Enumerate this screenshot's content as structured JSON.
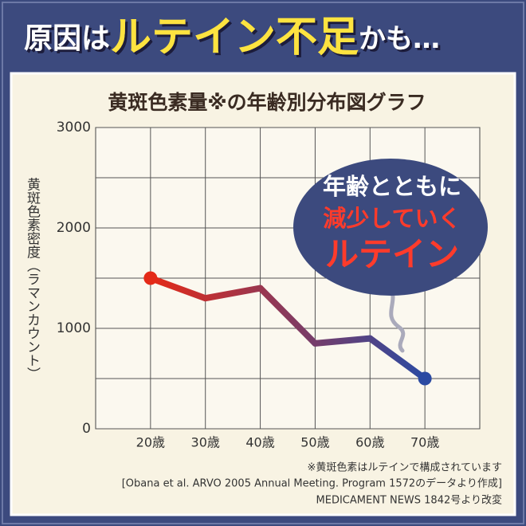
{
  "headline": [
    "原因は",
    "ルテイン不足",
    "かも…"
  ],
  "chart_data": {
    "type": "line",
    "title": "黄斑色素量※の年齢別分布図グラフ",
    "y_label": "黄斑色素密度（ラマンカウント）",
    "categories": [
      "20歳",
      "30歳",
      "40歳",
      "50歳",
      "60歳",
      "70歳"
    ],
    "values": [
      1500,
      1300,
      1400,
      850,
      900,
      500
    ],
    "colors": [
      "#e42a18",
      "#2b4aa2"
    ],
    "ylim": [
      0,
      3000
    ],
    "yticks": [
      0,
      1000,
      2000,
      3000
    ],
    "grid": true,
    "annotation": [
      "年齢とともに",
      "減少していく",
      "ルテイン"
    ],
    "notes": [
      "※黄斑色素はルテインで構成されています",
      "[Obana et al. ARVO 2005 Annual Meeting. Program 1572のデータより作成]",
      "MEDICAMENT NEWS 1842号より改変"
    ]
  }
}
